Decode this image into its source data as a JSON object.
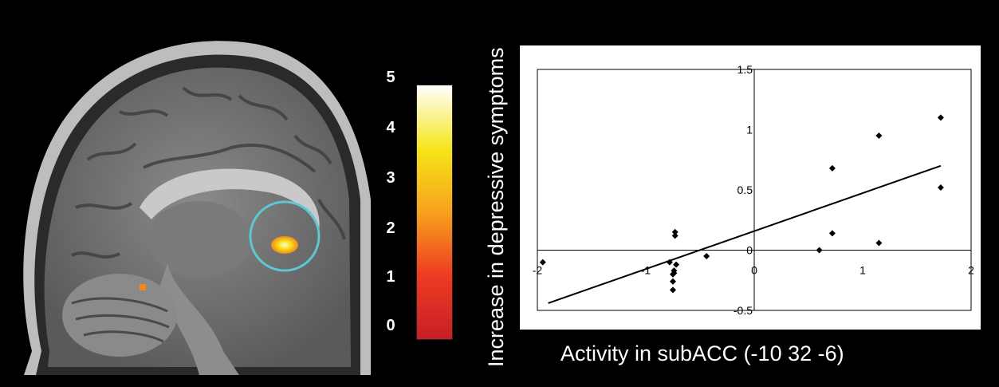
{
  "colorbar": {
    "ticks": [
      "5",
      "4",
      "3",
      "2",
      "1",
      "0"
    ],
    "colors": [
      "#ffffff",
      "#f5e51a",
      "#f7a21c",
      "#ee3b22",
      "#c61f26"
    ]
  },
  "chart_data": {
    "type": "scatter",
    "xlabel": "Activity in subACC (-10 32 -6)",
    "ylabel": "Increase in depressive symptoms",
    "xlim": [
      -2,
      2
    ],
    "ylim": [
      -0.5,
      1.5
    ],
    "x_ticks": [
      "-2",
      "-1",
      "0",
      "1",
      "2"
    ],
    "y_ticks": [
      "1.5",
      "1",
      "0.5",
      "0",
      "-0.5"
    ],
    "x": [
      -1.95,
      -0.78,
      -0.73,
      -0.73,
      -0.74,
      -0.74,
      -0.75,
      -0.75,
      -0.75,
      -0.72,
      -0.44,
      0.6,
      0.72,
      0.72,
      1.15,
      1.15,
      1.72,
      1.72
    ],
    "y": [
      -0.1,
      -0.1,
      0.15,
      0.12,
      -0.17,
      -0.19,
      -0.26,
      -0.33,
      -0.2,
      -0.12,
      -0.05,
      0.0,
      0.68,
      0.14,
      0.95,
      0.06,
      1.1,
      0.52
    ],
    "trendline": {
      "x": [
        -1.9,
        1.72
      ],
      "y": [
        -0.44,
        0.7
      ]
    },
    "marker_color": "#000000"
  }
}
